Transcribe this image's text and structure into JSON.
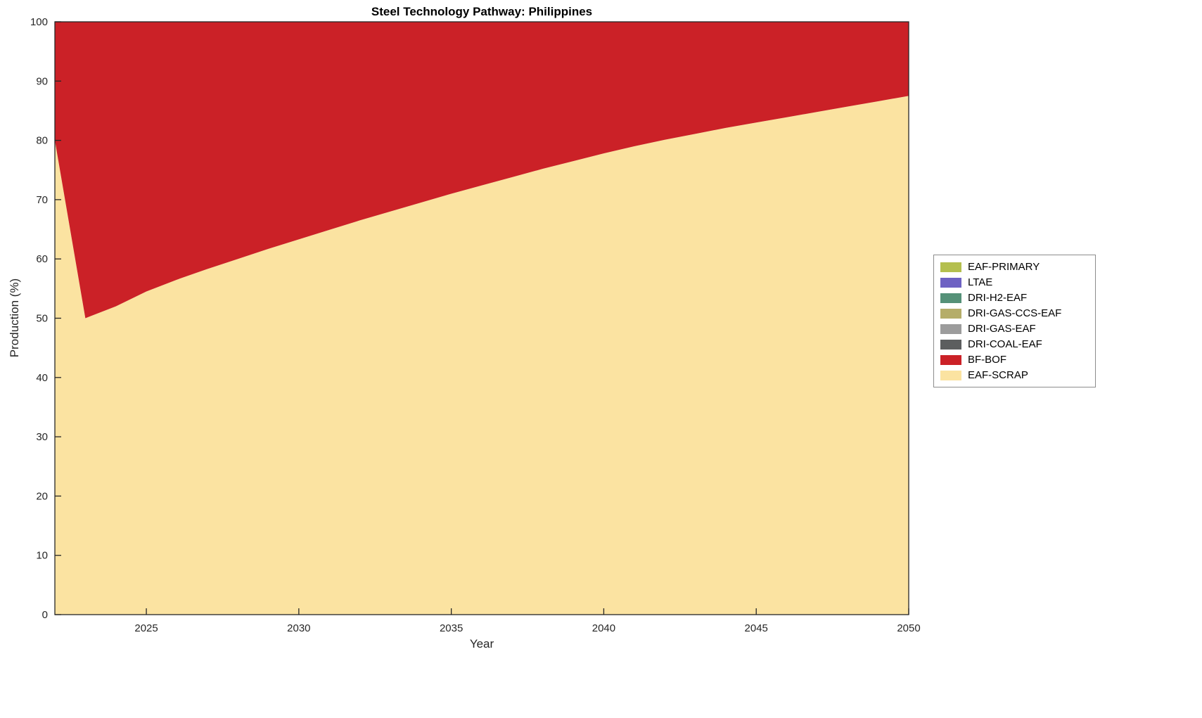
{
  "page": {
    "background": "#ffffff"
  },
  "chart_data": {
    "type": "area",
    "stacked": true,
    "title": "Steel Technology Pathway: Philippines",
    "xlabel": "Year",
    "ylabel": "Production (%)",
    "xlim": [
      2022,
      2050
    ],
    "ylim": [
      0,
      100
    ],
    "grid": false,
    "xticks": [
      2025,
      2030,
      2035,
      2040,
      2045,
      2050
    ],
    "yticks": [
      0,
      10,
      20,
      30,
      40,
      50,
      60,
      70,
      80,
      90,
      100
    ],
    "x": [
      2022,
      2023,
      2024,
      2025,
      2026,
      2027,
      2028,
      2029,
      2030,
      2031,
      2032,
      2033,
      2034,
      2035,
      2036,
      2037,
      2038,
      2039,
      2040,
      2041,
      2042,
      2043,
      2044,
      2045,
      2046,
      2047,
      2048,
      2049,
      2050
    ],
    "series": [
      {
        "name": "EAF-SCRAP",
        "color": "#fbe3a1",
        "values": [
          80,
          50,
          52,
          54.5,
          56.5,
          58.3,
          60,
          61.7,
          63.3,
          64.9,
          66.5,
          68,
          69.5,
          71,
          72.4,
          73.8,
          75.2,
          76.5,
          77.8,
          79,
          80.1,
          81.1,
          82.1,
          83,
          83.9,
          84.8,
          85.7,
          86.6,
          87.5
        ]
      },
      {
        "name": "BF-BOF",
        "color": "#cb2127",
        "values": [
          20,
          50,
          48,
          45.5,
          43.5,
          41.7,
          40,
          38.3,
          36.7,
          35.1,
          33.5,
          32,
          30.5,
          29,
          27.6,
          26.2,
          24.8,
          23.5,
          22.2,
          21,
          19.9,
          18.9,
          17.9,
          17,
          16.1,
          15.2,
          14.3,
          13.4,
          12.5
        ]
      },
      {
        "name": "DRI-COAL-EAF",
        "color": "#5c5e5f",
        "values": [
          0,
          0,
          0,
          0,
          0,
          0,
          0,
          0,
          0,
          0,
          0,
          0,
          0,
          0,
          0,
          0,
          0,
          0,
          0,
          0,
          0,
          0,
          0,
          0,
          0,
          0,
          0,
          0,
          0
        ]
      },
      {
        "name": "DRI-GAS-EAF",
        "color": "#9c9c9c",
        "values": [
          0,
          0,
          0,
          0,
          0,
          0,
          0,
          0,
          0,
          0,
          0,
          0,
          0,
          0,
          0,
          0,
          0,
          0,
          0,
          0,
          0,
          0,
          0,
          0,
          0,
          0,
          0,
          0,
          0
        ]
      },
      {
        "name": "DRI-GAS-CCS-EAF",
        "color": "#b5ad69",
        "values": [
          0,
          0,
          0,
          0,
          0,
          0,
          0,
          0,
          0,
          0,
          0,
          0,
          0,
          0,
          0,
          0,
          0,
          0,
          0,
          0,
          0,
          0,
          0,
          0,
          0,
          0,
          0,
          0,
          0
        ]
      },
      {
        "name": "DRI-H2-EAF",
        "color": "#559178",
        "values": [
          0,
          0,
          0,
          0,
          0,
          0,
          0,
          0,
          0,
          0,
          0,
          0,
          0,
          0,
          0,
          0,
          0,
          0,
          0,
          0,
          0,
          0,
          0,
          0,
          0,
          0,
          0,
          0,
          0
        ]
      },
      {
        "name": "LTAE",
        "color": "#6e62c3",
        "values": [
          0,
          0,
          0,
          0,
          0,
          0,
          0,
          0,
          0,
          0,
          0,
          0,
          0,
          0,
          0,
          0,
          0,
          0,
          0,
          0,
          0,
          0,
          0,
          0,
          0,
          0,
          0,
          0,
          0
        ]
      },
      {
        "name": "EAF-PRIMARY",
        "color": "#b4bf4e",
        "values": [
          0,
          0,
          0,
          0,
          0,
          0,
          0,
          0,
          0,
          0,
          0,
          0,
          0,
          0,
          0,
          0,
          0,
          0,
          0,
          0,
          0,
          0,
          0,
          0,
          0,
          0,
          0,
          0,
          0
        ]
      }
    ],
    "legend": {
      "position": "right",
      "entries": [
        {
          "label": "EAF-PRIMARY",
          "color": "#b4bf4e"
        },
        {
          "label": "LTAE",
          "color": "#6e62c3"
        },
        {
          "label": "DRI-H2-EAF",
          "color": "#559178"
        },
        {
          "label": "DRI-GAS-CCS-EAF",
          "color": "#b5ad69"
        },
        {
          "label": "DRI-GAS-EAF",
          "color": "#9c9c9c"
        },
        {
          "label": "DRI-COAL-EAF",
          "color": "#5c5e5f"
        },
        {
          "label": "BF-BOF",
          "color": "#cb2127"
        },
        {
          "label": "EAF-SCRAP",
          "color": "#fbe3a1"
        }
      ]
    }
  }
}
